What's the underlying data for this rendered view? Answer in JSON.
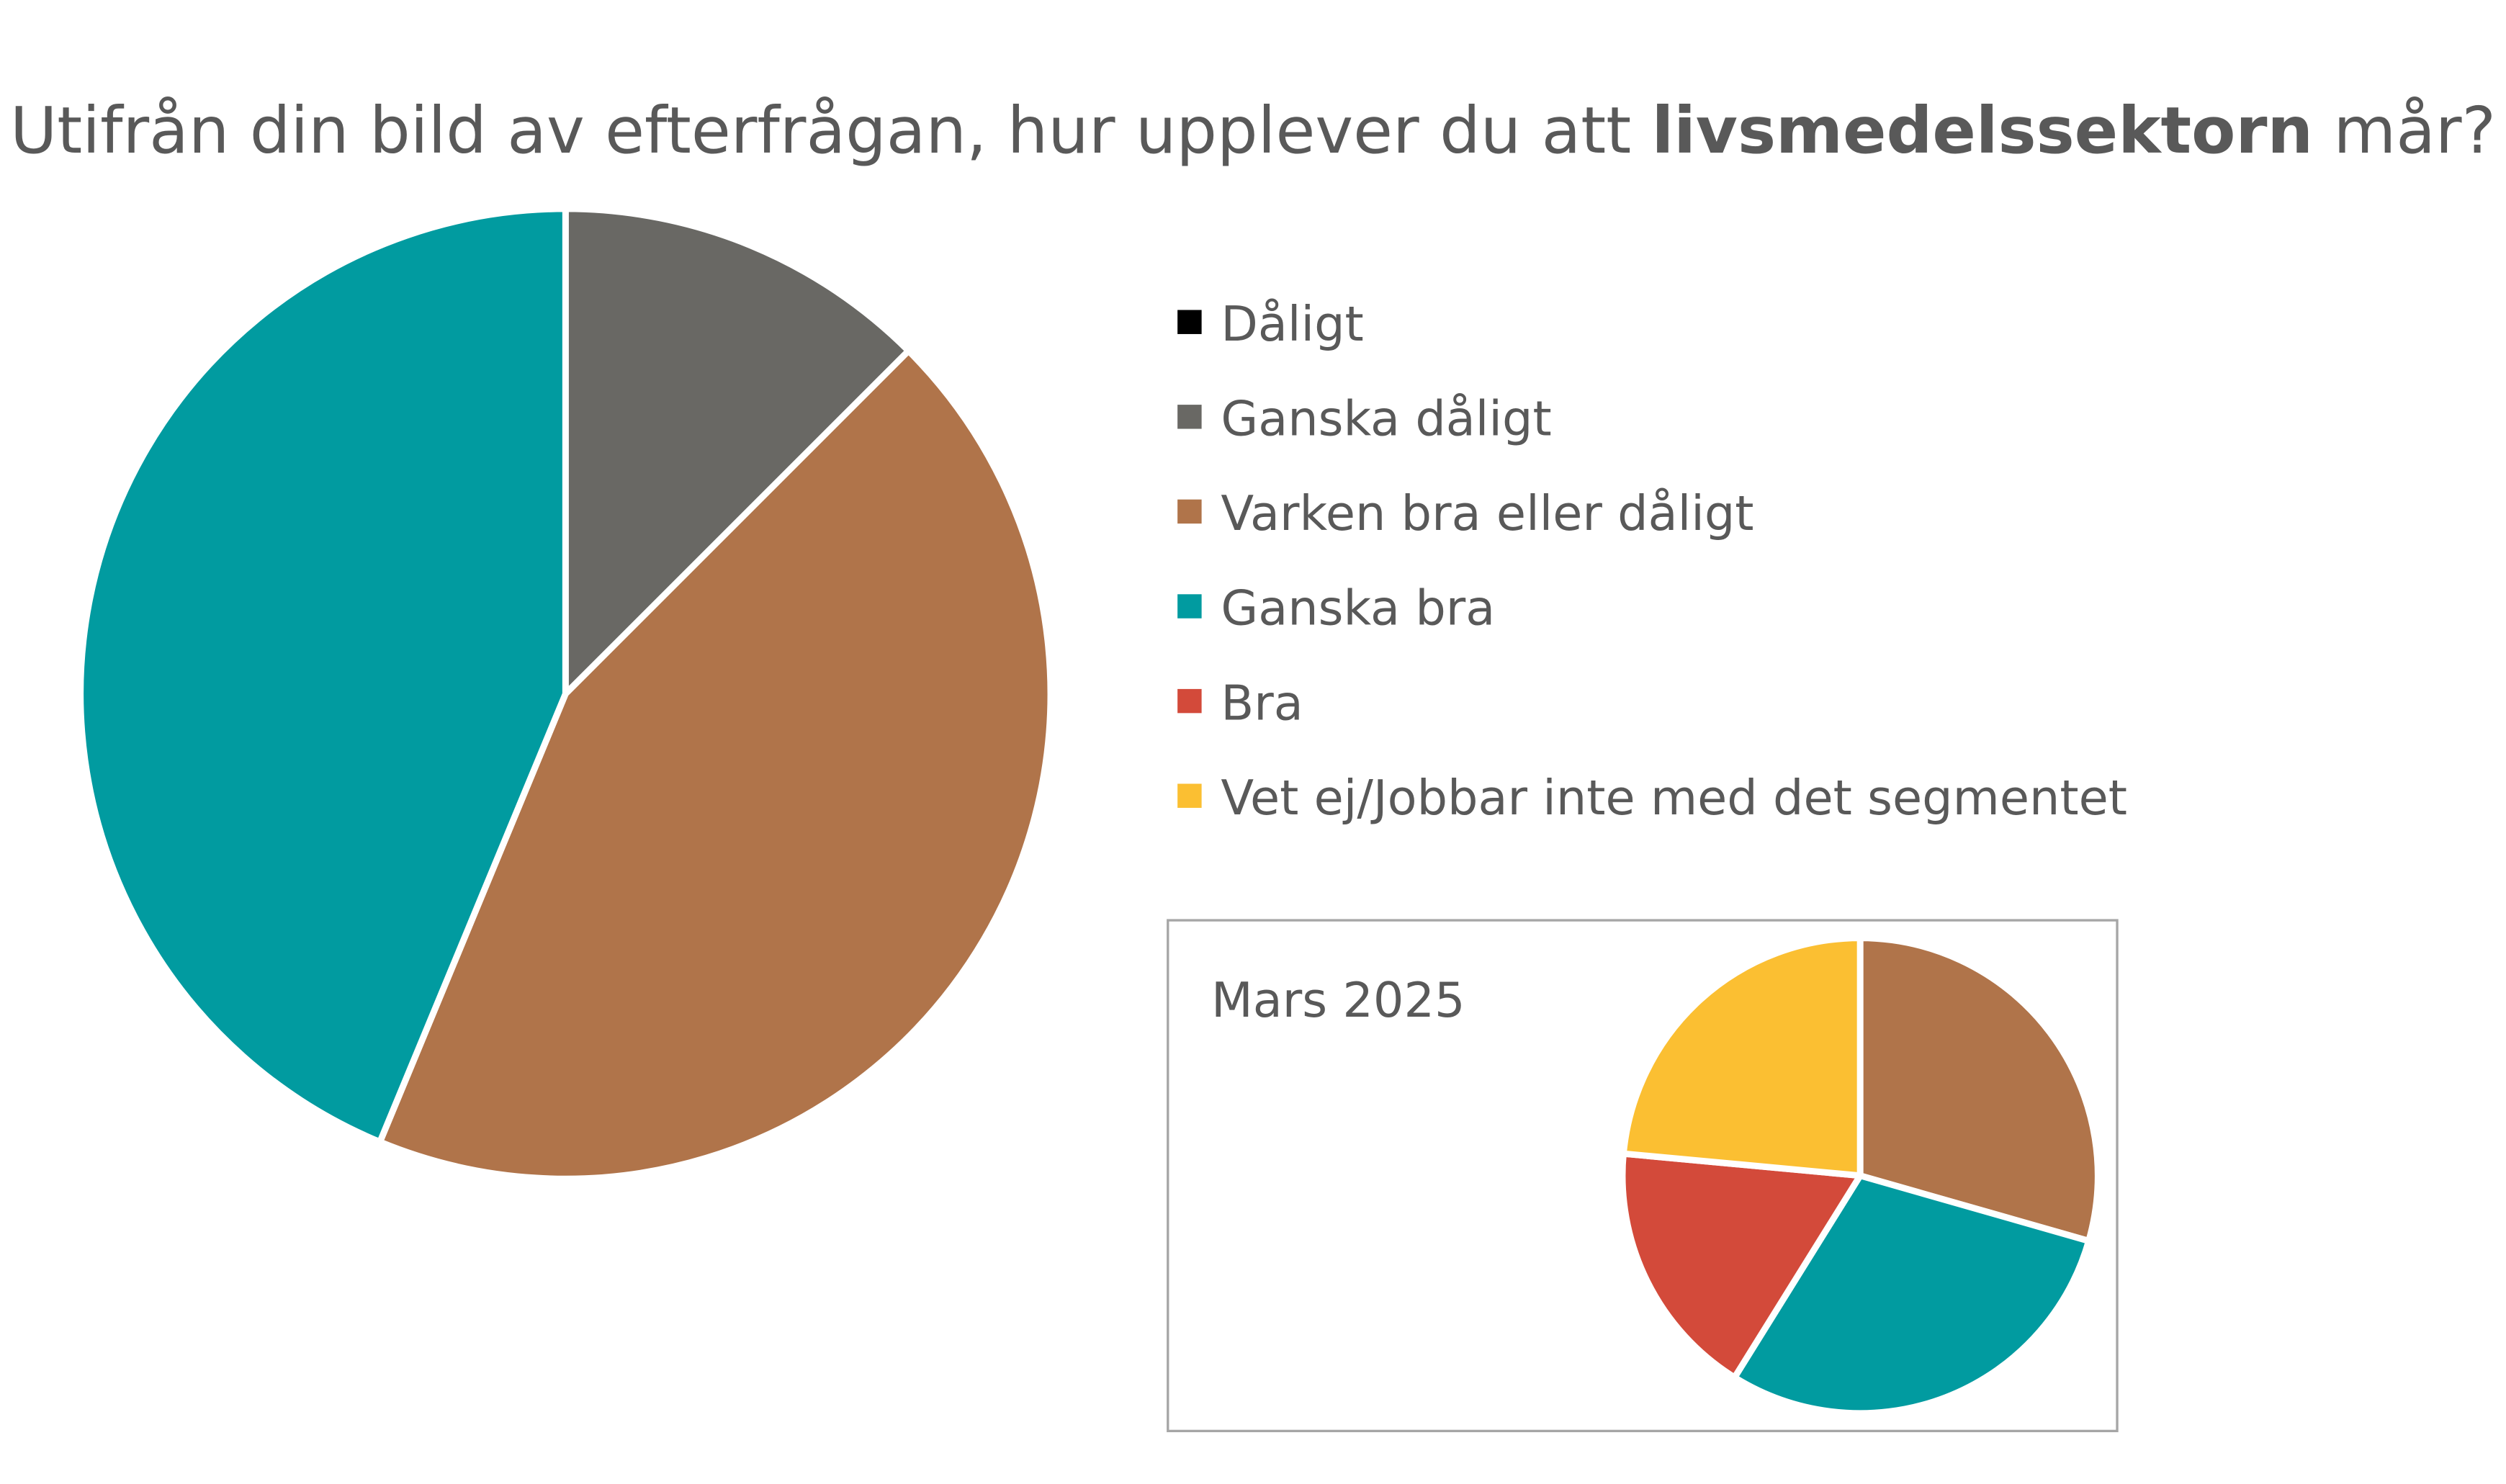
{
  "title_parts": [
    "Utifrån din bild av efterfrågan, hur upplever du att ",
    "livsmedelssektorn",
    " mår?"
  ],
  "chart_data": [
    {
      "type": "pie",
      "categories": [
        "Dåligt",
        "Ganska dåligt",
        "Varken bra eller dåligt",
        "Ganska bra",
        "Bra",
        "Vet ej/Jobbar inte med det segmentet"
      ],
      "colors": [
        "#000000",
        "#696864",
        "#b0744a",
        "#019ba0",
        "#d34a3a",
        "#fbbf32"
      ],
      "values": [
        0,
        12.5,
        43.75,
        43.75,
        0,
        0
      ]
    },
    {
      "type": "pie",
      "title": "Mars 2025",
      "values": [
        0,
        0,
        29.4,
        29.4,
        17.6,
        23.5
      ]
    }
  ]
}
